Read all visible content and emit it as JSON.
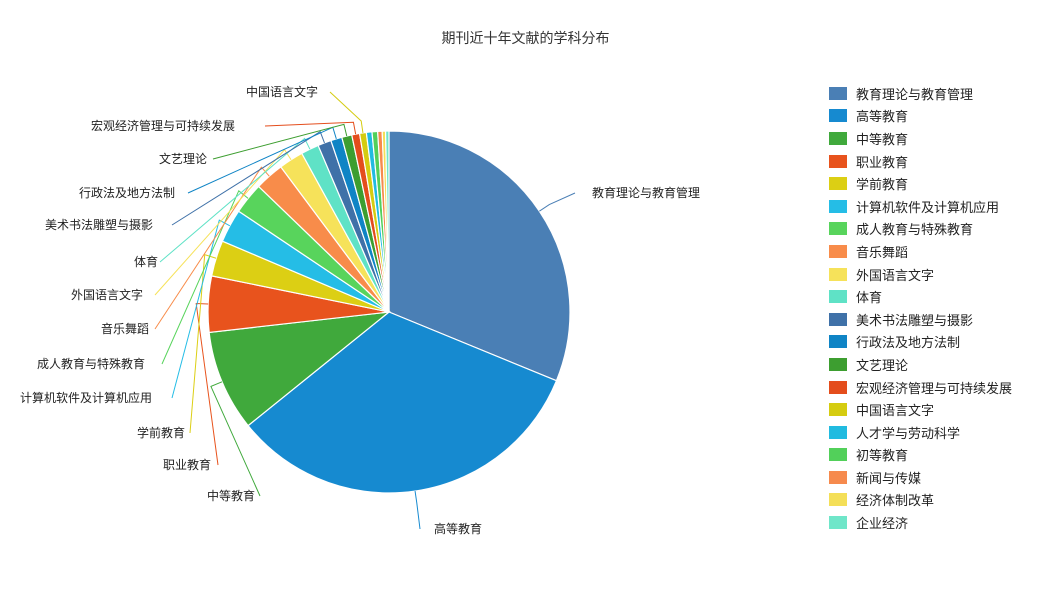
{
  "chart_data": {
    "type": "pie",
    "title": "期刊近十年文献的学科分布",
    "legend_position": "right",
    "series": [
      {
        "name": "教育理论与教育管理",
        "value": 31.2,
        "color": "#4a7fb5"
      },
      {
        "name": "高等教育",
        "value": 33.0,
        "color": "#168ad0"
      },
      {
        "name": "中等教育",
        "value": 9.0,
        "color": "#40a93c"
      },
      {
        "name": "职业教育",
        "value": 5.0,
        "color": "#e8531d"
      },
      {
        "name": "学前教育",
        "value": 3.2,
        "color": "#dccf14"
      },
      {
        "name": "计算机软件及计算机应用",
        "value": 3.0,
        "color": "#25bde6"
      },
      {
        "name": "成人教育与特殊教育",
        "value": 2.8,
        "color": "#58d45c"
      },
      {
        "name": "音乐舞蹈",
        "value": 2.6,
        "color": "#f88c4a"
      },
      {
        "name": "外国语言文字",
        "value": 2.2,
        "color": "#f6e25a"
      },
      {
        "name": "体育",
        "value": 1.6,
        "color": "#5fe2c6"
      },
      {
        "name": "美术书法雕塑与摄影",
        "value": 1.2,
        "color": "#3f71a8"
      },
      {
        "name": "行政法及地方法制",
        "value": 1.0,
        "color": "#0f84c5"
      },
      {
        "name": "文艺理论",
        "value": 0.9,
        "color": "#3d9e30"
      },
      {
        "name": "宏观经济管理与可持续发展",
        "value": 0.7,
        "color": "#e44d1c"
      },
      {
        "name": "中国语言文字",
        "value": 0.6,
        "color": "#d5cc10"
      },
      {
        "name": "人才学与劳动科学",
        "value": 0.5,
        "color": "#21bbe0"
      },
      {
        "name": "初等教育",
        "value": 0.5,
        "color": "#52d05a"
      },
      {
        "name": "新闻与传媒",
        "value": 0.4,
        "color": "#f68a4d"
      },
      {
        "name": "经济体制改革",
        "value": 0.3,
        "color": "#f4df58"
      },
      {
        "name": "企业经济",
        "value": 0.3,
        "color": "#6fe6c9"
      }
    ]
  }
}
